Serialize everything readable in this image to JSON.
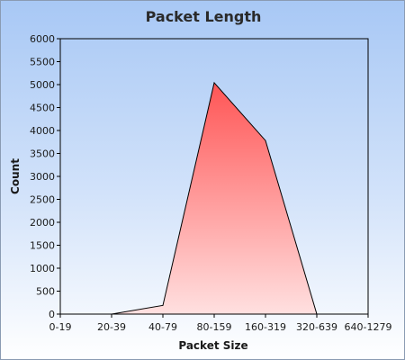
{
  "chart_data": {
    "type": "area",
    "title": "Packet Length",
    "xlabel": "Packet Size",
    "ylabel": "Count",
    "categories": [
      "0-19",
      "20-39",
      "40-79",
      "80-159",
      "160-319",
      "320-639",
      "640-1279"
    ],
    "y_ticks": [
      "0",
      "500",
      "1000",
      "1500",
      "2000",
      "2500",
      "3000",
      "3500",
      "4000",
      "4500",
      "5000",
      "5500",
      "6000"
    ],
    "values": [
      0,
      0,
      190,
      5040,
      3780,
      0,
      0
    ],
    "ylim": [
      0,
      6000
    ],
    "grid": false,
    "legend": "none",
    "colors": {
      "fill_top": "#ff5555",
      "fill_bottom": "#ffe0e0",
      "line": "#000000",
      "plot_background_top": "#a8c8f5",
      "plot_background_bottom": "#ffffff"
    }
  }
}
